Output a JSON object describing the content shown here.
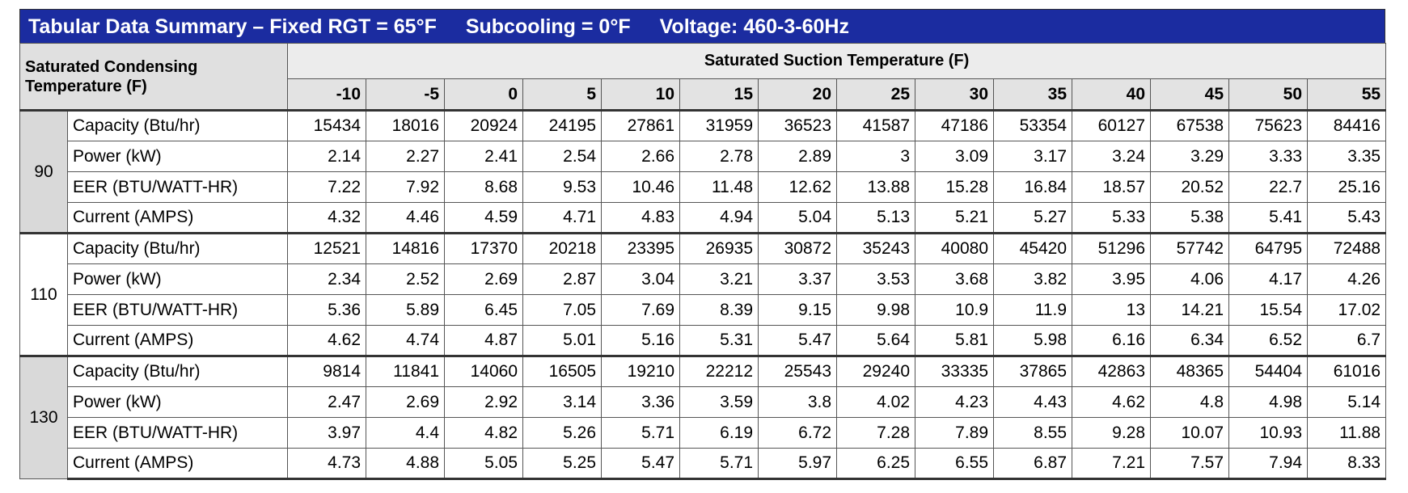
{
  "title": [
    "Tabular Data Summary – Fixed RGT = 65°F",
    "Subcooling = 0°F",
    "Voltage: 460-3-60Hz"
  ],
  "table": {
    "corner": "Saturated Condensing Temperature (F)",
    "column_group": "Saturated Suction Temperature (F)",
    "columns": [
      -10,
      -5,
      0,
      5,
      10,
      15,
      20,
      25,
      30,
      35,
      40,
      45,
      50,
      55
    ],
    "groups": [
      {
        "label": 90,
        "rows": [
          {
            "label": "Capacity (Btu/hr)",
            "values": [
              15434,
              18016,
              20924,
              24195,
              27861,
              31959,
              36523,
              41587,
              47186,
              53354,
              60127,
              67538,
              75623,
              84416
            ]
          },
          {
            "label": "Power (kW)",
            "values": [
              2.14,
              2.27,
              2.41,
              2.54,
              2.66,
              2.78,
              2.89,
              3,
              3.09,
              3.17,
              3.24,
              3.29,
              3.33,
              3.35
            ]
          },
          {
            "label": "EER (BTU/WATT-HR)",
            "values": [
              7.22,
              7.92,
              8.68,
              9.53,
              10.46,
              11.48,
              12.62,
              13.88,
              15.28,
              16.84,
              18.57,
              20.52,
              22.7,
              25.16
            ]
          },
          {
            "label": "Current (AMPS)",
            "values": [
              4.32,
              4.46,
              4.59,
              4.71,
              4.83,
              4.94,
              5.04,
              5.13,
              5.21,
              5.27,
              5.33,
              5.38,
              5.41,
              5.43
            ]
          }
        ]
      },
      {
        "label": 110,
        "rows": [
          {
            "label": "Capacity (Btu/hr)",
            "values": [
              12521,
              14816,
              17370,
              20218,
              23395,
              26935,
              30872,
              35243,
              40080,
              45420,
              51296,
              57742,
              64795,
              72488
            ]
          },
          {
            "label": "Power (kW)",
            "values": [
              2.34,
              2.52,
              2.69,
              2.87,
              3.04,
              3.21,
              3.37,
              3.53,
              3.68,
              3.82,
              3.95,
              4.06,
              4.17,
              4.26
            ]
          },
          {
            "label": "EER (BTU/WATT-HR)",
            "values": [
              5.36,
              5.89,
              6.45,
              7.05,
              7.69,
              8.39,
              9.15,
              9.98,
              10.9,
              11.9,
              13,
              14.21,
              15.54,
              17.02
            ]
          },
          {
            "label": "Current (AMPS)",
            "values": [
              4.62,
              4.74,
              4.87,
              5.01,
              5.16,
              5.31,
              5.47,
              5.64,
              5.81,
              5.98,
              6.16,
              6.34,
              6.52,
              6.7
            ]
          }
        ]
      },
      {
        "label": 130,
        "rows": [
          {
            "label": "Capacity (Btu/hr)",
            "values": [
              9814,
              11841,
              14060,
              16505,
              19210,
              22212,
              25543,
              29240,
              33335,
              37865,
              42863,
              48365,
              54404,
              61016
            ]
          },
          {
            "label": "Power (kW)",
            "values": [
              2.47,
              2.69,
              2.92,
              3.14,
              3.36,
              3.59,
              3.8,
              4.02,
              4.23,
              4.43,
              4.62,
              4.8,
              4.98,
              5.14
            ]
          },
          {
            "label": "EER (BTU/WATT-HR)",
            "values": [
              3.97,
              4.4,
              4.82,
              5.26,
              5.71,
              6.19,
              6.72,
              7.28,
              7.89,
              8.55,
              9.28,
              10.07,
              10.93,
              11.88
            ]
          },
          {
            "label": "Current (AMPS)",
            "values": [
              4.73,
              4.88,
              5.05,
              5.25,
              5.47,
              5.71,
              5.97,
              6.25,
              6.55,
              6.87,
              7.21,
              7.57,
              7.94,
              8.33
            ]
          }
        ]
      }
    ]
  }
}
